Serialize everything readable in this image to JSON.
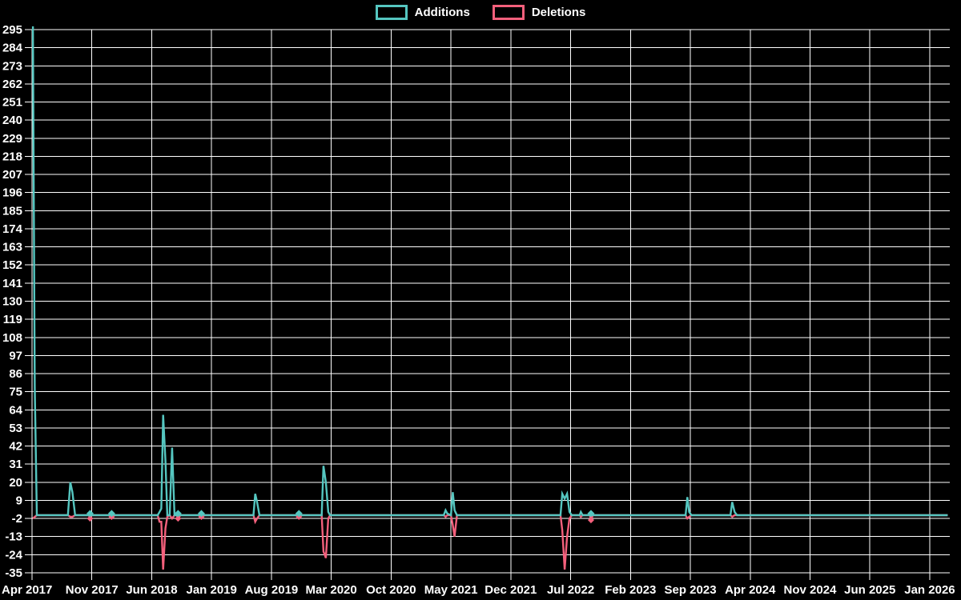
{
  "page": {
    "background": "#000000",
    "text_color": "#ffffff"
  },
  "legend": {
    "items": [
      {
        "label": "Additions",
        "color": "#55c6c0"
      },
      {
        "label": "Deletions",
        "color": "#f4607c"
      }
    ]
  },
  "chart_data": {
    "type": "line",
    "title": "",
    "legend_position": "top-center",
    "grid": true,
    "background_color": "#000000",
    "grid_color": "#ffffff",
    "x_tick_labels": [
      "Apr 2017",
      "Nov 2017",
      "Jun 2018",
      "Jan 2019",
      "Aug 2019",
      "Mar 2020",
      "Oct 2020",
      "May 2021",
      "Dec 2021",
      "Jul 2022",
      "Feb 2023",
      "Sep 2023",
      "Apr 2024",
      "Nov 2024",
      "Jun 2025",
      "Jan 2026"
    ],
    "y_tick_values": [
      295,
      284,
      273,
      262,
      251,
      240,
      229,
      218,
      207,
      196,
      185,
      174,
      163,
      152,
      141,
      130,
      119,
      108,
      97,
      86,
      75,
      64,
      53,
      42,
      31,
      20,
      9,
      -2,
      -13,
      -24,
      -35
    ],
    "y_range": [
      -35,
      295
    ],
    "x_range_tick_units": [
      0,
      15.3
    ],
    "marker_points": [
      0.97,
      1.33,
      2.44,
      2.83,
      4.46,
      9.34
    ],
    "series": [
      {
        "name": "Additions",
        "color": "#55c6c0",
        "points": [
          [
            0.015,
            297
          ],
          [
            0.045,
            78
          ],
          [
            0.08,
            0
          ],
          [
            0.6,
            0
          ],
          [
            0.64,
            20
          ],
          [
            0.675,
            14
          ],
          [
            0.72,
            0
          ],
          [
            0.95,
            0
          ],
          [
            0.97,
            1
          ],
          [
            0.99,
            0
          ],
          [
            1.31,
            0
          ],
          [
            1.33,
            1
          ],
          [
            1.35,
            0
          ],
          [
            2.1,
            0
          ],
          [
            2.13,
            2
          ],
          [
            2.16,
            4
          ],
          [
            2.19,
            61
          ],
          [
            2.23,
            33
          ],
          [
            2.26,
            0
          ],
          [
            2.3,
            0
          ],
          [
            2.34,
            41
          ],
          [
            2.38,
            0
          ],
          [
            2.42,
            0
          ],
          [
            2.44,
            1
          ],
          [
            2.48,
            0
          ],
          [
            2.81,
            0
          ],
          [
            2.83,
            1
          ],
          [
            2.85,
            0
          ],
          [
            3.7,
            0
          ],
          [
            3.73,
            13
          ],
          [
            3.76,
            8
          ],
          [
            3.8,
            0
          ],
          [
            4.44,
            0
          ],
          [
            4.46,
            1
          ],
          [
            4.48,
            0
          ],
          [
            4.84,
            0
          ],
          [
            4.87,
            30
          ],
          [
            4.91,
            20
          ],
          [
            4.95,
            2
          ],
          [
            4.98,
            0
          ],
          [
            6.88,
            0
          ],
          [
            6.91,
            3
          ],
          [
            6.94,
            1
          ],
          [
            7.0,
            0
          ],
          [
            7.03,
            14
          ],
          [
            7.06,
            3
          ],
          [
            7.1,
            0
          ],
          [
            8.83,
            0
          ],
          [
            8.86,
            13
          ],
          [
            8.9,
            10
          ],
          [
            8.94,
            13
          ],
          [
            8.98,
            2
          ],
          [
            9.02,
            0
          ],
          [
            9.15,
            0
          ],
          [
            9.17,
            2
          ],
          [
            9.2,
            0
          ],
          [
            9.32,
            0
          ],
          [
            9.34,
            1
          ],
          [
            9.37,
            0
          ],
          [
            10.92,
            0
          ],
          [
            10.95,
            11
          ],
          [
            10.98,
            2
          ],
          [
            11.02,
            0
          ],
          [
            11.67,
            0
          ],
          [
            11.7,
            8
          ],
          [
            11.74,
            2
          ],
          [
            11.78,
            0
          ],
          [
            15.3,
            0
          ]
        ]
      },
      {
        "name": "Deletions",
        "color": "#f4607c",
        "points": [
          [
            0.015,
            -2
          ],
          [
            0.045,
            -1
          ],
          [
            0.08,
            0
          ],
          [
            0.6,
            0
          ],
          [
            0.64,
            -1
          ],
          [
            0.675,
            -1
          ],
          [
            0.72,
            0
          ],
          [
            0.95,
            0
          ],
          [
            0.97,
            -2
          ],
          [
            0.99,
            0
          ],
          [
            1.31,
            0
          ],
          [
            1.33,
            -1
          ],
          [
            1.35,
            0
          ],
          [
            2.1,
            0
          ],
          [
            2.13,
            -4
          ],
          [
            2.16,
            -4
          ],
          [
            2.19,
            -33
          ],
          [
            2.23,
            -8
          ],
          [
            2.26,
            -1
          ],
          [
            2.3,
            0
          ],
          [
            2.34,
            -2
          ],
          [
            2.38,
            0
          ],
          [
            2.42,
            0
          ],
          [
            2.44,
            -2
          ],
          [
            2.48,
            0
          ],
          [
            2.81,
            0
          ],
          [
            2.83,
            -1
          ],
          [
            2.85,
            0
          ],
          [
            3.7,
            0
          ],
          [
            3.73,
            -4
          ],
          [
            3.76,
            -2
          ],
          [
            3.8,
            0
          ],
          [
            4.44,
            0
          ],
          [
            4.46,
            -1
          ],
          [
            4.48,
            0
          ],
          [
            4.84,
            0
          ],
          [
            4.87,
            -22
          ],
          [
            4.91,
            -26
          ],
          [
            4.95,
            -2
          ],
          [
            4.98,
            0
          ],
          [
            6.88,
            0
          ],
          [
            6.91,
            -1
          ],
          [
            6.94,
            0
          ],
          [
            7.0,
            0
          ],
          [
            7.03,
            -6
          ],
          [
            7.06,
            -13
          ],
          [
            7.1,
            0
          ],
          [
            8.83,
            0
          ],
          [
            8.86,
            -9
          ],
          [
            8.9,
            -33
          ],
          [
            8.94,
            -13
          ],
          [
            8.98,
            -2
          ],
          [
            9.02,
            0
          ],
          [
            9.15,
            0
          ],
          [
            9.17,
            -1
          ],
          [
            9.2,
            0
          ],
          [
            9.32,
            0
          ],
          [
            9.34,
            -3
          ],
          [
            9.37,
            0
          ],
          [
            10.92,
            0
          ],
          [
            10.95,
            -2
          ],
          [
            10.98,
            -1
          ],
          [
            11.02,
            0
          ],
          [
            11.67,
            0
          ],
          [
            11.7,
            -1
          ],
          [
            11.74,
            0
          ],
          [
            11.78,
            0
          ],
          [
            15.3,
            0
          ]
        ]
      }
    ]
  }
}
